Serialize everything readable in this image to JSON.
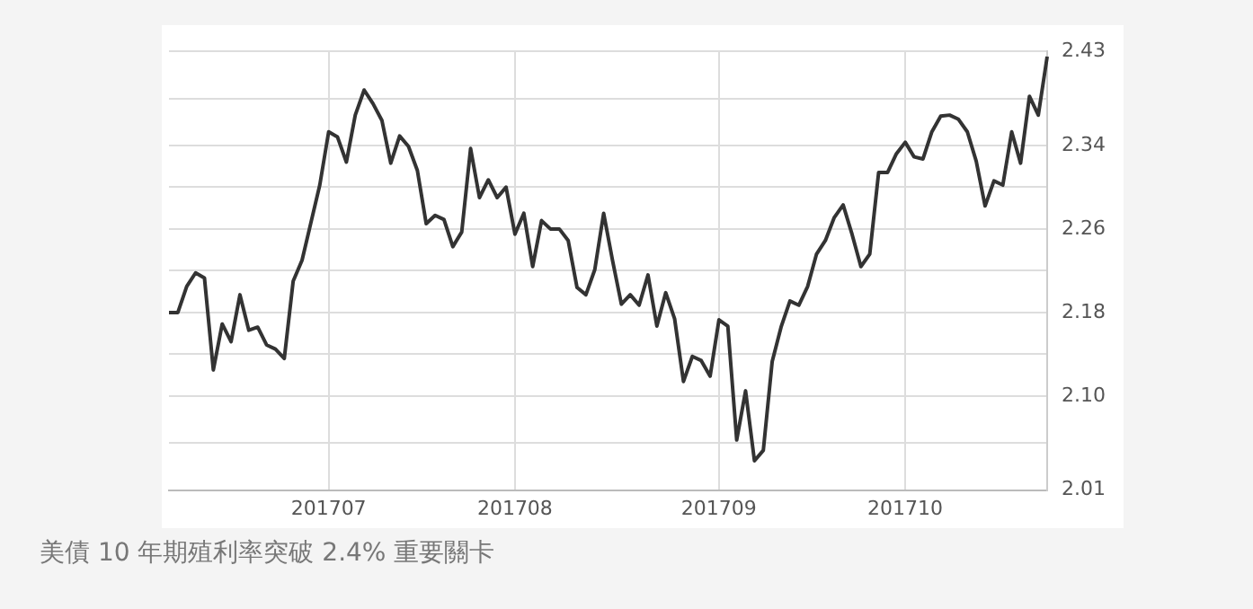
{
  "chart_data": {
    "type": "line",
    "categories": [
      null,
      null,
      null,
      null,
      null,
      null,
      null,
      null,
      null,
      null,
      null,
      null,
      null,
      null,
      null,
      null,
      null,
      null,
      "201707",
      null,
      null,
      null,
      null,
      null,
      null,
      null,
      null,
      null,
      null,
      null,
      null,
      null,
      null,
      null,
      null,
      null,
      null,
      null,
      null,
      "201708",
      null,
      null,
      null,
      null,
      null,
      null,
      null,
      null,
      null,
      null,
      null,
      null,
      null,
      null,
      null,
      null,
      null,
      null,
      null,
      null,
      null,
      null,
      "201709",
      null,
      null,
      null,
      null,
      null,
      null,
      null,
      null,
      null,
      null,
      null,
      null,
      null,
      null,
      null,
      null,
      null,
      null,
      null,
      null,
      "201710",
      null,
      null,
      null,
      null,
      null,
      null,
      null,
      null,
      null,
      null,
      null,
      null,
      null,
      null,
      null,
      null
    ],
    "series": [
      {
        "color": "#333333",
        "values": [
          2.18,
          2.18,
          2.205,
          2.218,
          2.213,
          2.125,
          2.169,
          2.152,
          2.197,
          2.163,
          2.166,
          2.149,
          2.145,
          2.136,
          2.21,
          2.23,
          2.266,
          2.302,
          2.353,
          2.348,
          2.324,
          2.369,
          2.393,
          2.38,
          2.364,
          2.323,
          2.349,
          2.339,
          2.316,
          2.265,
          2.273,
          2.269,
          2.243,
          2.257,
          2.337,
          2.29,
          2.307,
          2.29,
          2.3,
          2.255,
          2.275,
          2.224,
          2.268,
          2.26,
          2.26,
          2.249,
          2.204,
          2.197,
          2.221,
          2.275,
          2.23,
          2.188,
          2.197,
          2.187,
          2.216,
          2.167,
          2.199,
          2.174,
          2.114,
          2.138,
          2.134,
          2.119,
          2.173,
          2.167,
          2.058,
          2.105,
          2.038,
          2.048,
          2.133,
          2.166,
          2.191,
          2.187,
          2.205,
          2.236,
          2.249,
          2.271,
          2.283,
          2.255,
          2.224,
          2.236,
          2.314,
          2.314,
          2.332,
          2.343,
          2.329,
          2.327,
          2.353,
          2.368,
          2.369,
          2.365,
          2.353,
          2.325,
          2.282,
          2.306,
          2.302,
          2.353,
          2.323,
          2.387,
          2.369,
          2.425
        ]
      }
    ],
    "ylim": [
      2.01,
      2.43
    ],
    "yticks": [
      2.01,
      {
        "value": 2.055,
        "label": null
      },
      {
        "value": 2.1,
        "label": "2.10"
      },
      {
        "value": 2.14,
        "label": null
      },
      2.18,
      {
        "value": 2.22,
        "label": null
      },
      2.26,
      {
        "value": 2.3,
        "label": null
      },
      2.34,
      {
        "value": 2.385,
        "label": null
      },
      2.43
    ],
    "grid": true,
    "marker": "none",
    "line_style": "solid",
    "annotations": [
      "美債 10 年期殖利率突破 2.4% 重要關卡"
    ]
  }
}
